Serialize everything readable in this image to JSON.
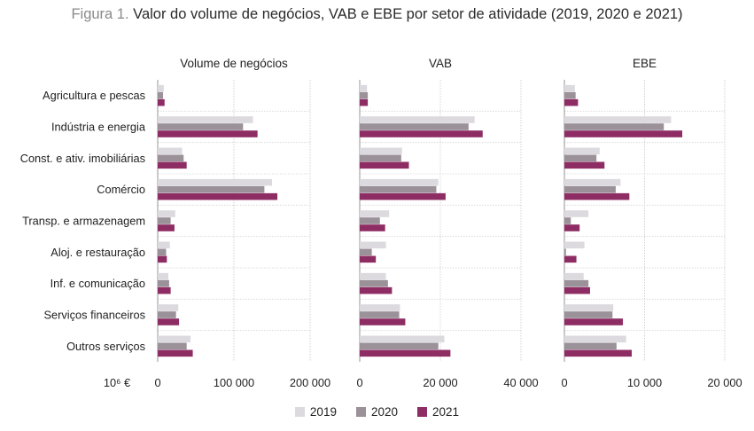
{
  "title": {
    "label": "Figura 1.",
    "text": "Valor do volume de negócios, VAB e EBE por setor de atividade (2019, 2020 e 2021)"
  },
  "unit_label": "10⁶ €",
  "colors": {
    "2019": "#dcdade",
    "2020": "#9b9199",
    "2021": "#8e2d64"
  },
  "chart_data": {
    "type": "bar",
    "orientation": "horizontal",
    "categories": [
      "Agricultura e pescas",
      "Indústria e energia",
      "Const. e ativ. imobiliárias",
      "Comércio",
      "Transp. e armazenagem",
      "Aloj. e restauração",
      "Inf. e comunicação",
      "Serviços financeiros",
      "Outros serviços"
    ],
    "panels": [
      {
        "title": "Volume de negócios",
        "xlim": [
          0,
          200000
        ],
        "ticks": [
          0,
          100000,
          200000
        ],
        "tick_labels": [
          "0",
          "100 000",
          "200 000"
        ],
        "series": [
          {
            "name": "2019",
            "values": [
              8000,
              125000,
              32000,
              150000,
              23000,
              16000,
              14000,
              27000,
              43000
            ]
          },
          {
            "name": "2020",
            "values": [
              7000,
              112000,
              34000,
              140000,
              17000,
              11000,
              15000,
              24000,
              38000
            ]
          },
          {
            "name": "2021",
            "values": [
              9000,
              131000,
              38000,
              157000,
              22000,
              12000,
              17000,
              28000,
              46000
            ]
          }
        ]
      },
      {
        "title": "VAB",
        "xlim": [
          0,
          40000
        ],
        "ticks": [
          0,
          20000,
          40000
        ],
        "tick_labels": [
          "0",
          "20 000",
          "40 000"
        ],
        "series": [
          {
            "name": "2019",
            "values": [
              1800,
              28500,
              10500,
              19500,
              7300,
              6500,
              6500,
              10000,
              21000
            ]
          },
          {
            "name": "2020",
            "values": [
              2000,
              27000,
              10300,
              19000,
              5000,
              3000,
              7000,
              9800,
              19500
            ]
          },
          {
            "name": "2021",
            "values": [
              2000,
              30500,
              12200,
              21300,
              6300,
              4000,
              8000,
              11300,
              22500
            ]
          }
        ]
      },
      {
        "title": "EBE",
        "xlim": [
          0,
          20000
        ],
        "ticks": [
          0,
          10000,
          20000
        ],
        "tick_labels": [
          "0",
          "10 000",
          "20 000"
        ],
        "series": [
          {
            "name": "2019",
            "values": [
              1300,
              13300,
              4400,
              7000,
              3000,
              2500,
              2400,
              6100,
              7700
            ]
          },
          {
            "name": "2020",
            "values": [
              1400,
              12400,
              4000,
              6400,
              800,
              200,
              3000,
              6000,
              6500
            ]
          },
          {
            "name": "2021",
            "values": [
              1700,
              14700,
              5000,
              8100,
              1900,
              1500,
              3200,
              7300,
              8400
            ]
          }
        ]
      }
    ],
    "legend": [
      "2019",
      "2020",
      "2021"
    ],
    "legend_position": "bottom",
    "grid": true
  }
}
